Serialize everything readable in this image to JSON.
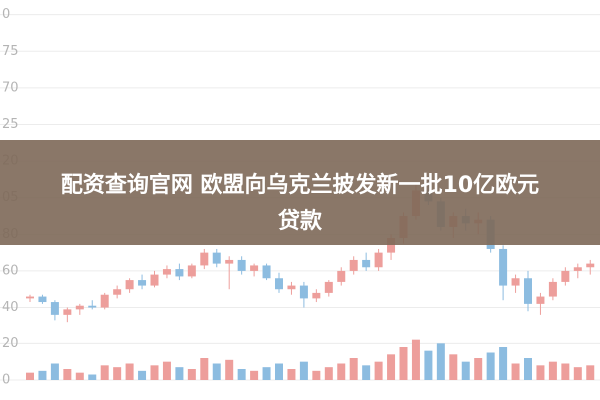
{
  "banner": {
    "lines": [
      "配资查询官网 欧盟向乌克兰披发新一批10亿欧元",
      "贷款"
    ]
  },
  "chart_data": {
    "type": "candlestick",
    "up_color": "#e0504a",
    "down_color": "#2f86c8",
    "grid": true,
    "ylim": [
      25,
      208
    ],
    "yticks": [
      {
        "value": 200,
        "label": "0"
      },
      {
        "value": 180,
        "label": "75"
      },
      {
        "value": 160,
        "label": "70"
      },
      {
        "value": 140,
        "label": "25"
      },
      {
        "value": 120,
        "label": "20"
      },
      {
        "value": 100,
        "label": "05"
      },
      80,
      60,
      40
    ],
    "candles": [
      [
        45,
        47,
        43,
        46
      ],
      [
        46,
        47,
        42,
        43
      ],
      [
        43,
        44,
        33,
        36
      ],
      [
        36,
        40,
        32,
        39
      ],
      [
        39,
        42,
        36,
        41
      ],
      [
        41,
        44,
        39,
        40
      ],
      [
        40,
        48,
        39,
        47
      ],
      [
        47,
        52,
        45,
        50
      ],
      [
        50,
        56,
        48,
        55
      ],
      [
        55,
        58,
        50,
        52
      ],
      [
        52,
        60,
        51,
        58
      ],
      [
        58,
        63,
        56,
        61
      ],
      [
        61,
        64,
        55,
        57
      ],
      [
        57,
        64,
        56,
        63
      ],
      [
        63,
        72,
        61,
        70
      ],
      [
        70,
        72,
        62,
        64
      ],
      [
        64,
        68,
        50,
        66
      ],
      [
        66,
        68,
        58,
        60
      ],
      [
        60,
        64,
        57,
        63
      ],
      [
        63,
        64,
        55,
        56
      ],
      [
        56,
        59,
        48,
        50
      ],
      [
        50,
        54,
        47,
        52
      ],
      [
        52,
        54,
        40,
        45
      ],
      [
        45,
        50,
        43,
        48
      ],
      [
        48,
        55,
        46,
        54
      ],
      [
        54,
        62,
        52,
        60
      ],
      [
        60,
        68,
        58,
        66
      ],
      [
        66,
        70,
        60,
        62
      ],
      [
        62,
        72,
        60,
        70
      ],
      [
        70,
        80,
        66,
        78
      ],
      [
        78,
        92,
        75,
        90
      ],
      [
        90,
        108,
        88,
        104
      ],
      [
        104,
        112,
        96,
        98
      ],
      [
        98,
        100,
        82,
        84
      ],
      [
        84,
        92,
        78,
        90
      ],
      [
        90,
        94,
        82,
        86
      ],
      [
        86,
        92,
        80,
        88
      ],
      [
        88,
        90,
        70,
        72
      ],
      [
        72,
        74,
        44,
        52
      ],
      [
        52,
        58,
        48,
        56
      ],
      [
        56,
        60,
        38,
        42
      ],
      [
        42,
        48,
        36,
        46
      ],
      [
        46,
        56,
        44,
        54
      ],
      [
        54,
        62,
        52,
        60
      ],
      [
        60,
        64,
        56,
        62
      ],
      [
        62,
        66,
        58,
        64
      ]
    ],
    "volume": {
      "ylim": [
        0,
        24
      ],
      "yticks": [
        0,
        20
      ],
      "values": [
        4,
        5,
        9,
        6,
        4,
        3,
        8,
        7,
        9,
        5,
        8,
        10,
        7,
        6,
        12,
        9,
        11,
        6,
        5,
        7,
        9,
        6,
        10,
        5,
        7,
        9,
        12,
        8,
        10,
        14,
        18,
        22,
        16,
        20,
        14,
        10,
        12,
        15,
        18,
        9,
        12,
        8,
        10,
        9,
        7,
        8
      ]
    }
  }
}
